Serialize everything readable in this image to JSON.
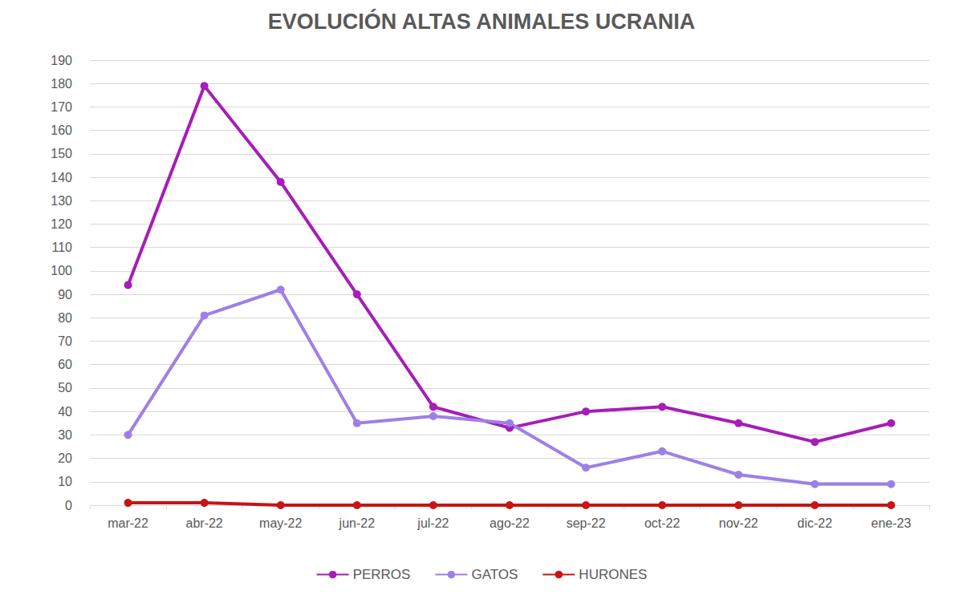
{
  "chart_data": {
    "type": "line",
    "title": "EVOLUCIÓN ALTAS ANIMALES UCRANIA",
    "categories": [
      "mar-22",
      "abr-22",
      "may-22",
      "jun-22",
      "jul-22",
      "ago-22",
      "sep-22",
      "oct-22",
      "nov-22",
      "dic-22",
      "ene-23"
    ],
    "series": [
      {
        "name": "PERROS",
        "color": "#a61db8",
        "values": [
          94,
          179,
          138,
          90,
          42,
          33,
          40,
          42,
          35,
          27,
          35
        ]
      },
      {
        "name": "GATOS",
        "color": "#9d80e6",
        "values": [
          30,
          81,
          92,
          35,
          38,
          35,
          16,
          23,
          13,
          9,
          9
        ]
      },
      {
        "name": "HURONES",
        "color": "#c81414",
        "values": [
          1,
          1,
          0,
          0,
          0,
          0,
          0,
          0,
          0,
          0,
          0
        ]
      }
    ],
    "ylim": [
      0,
      190
    ],
    "yticks": [
      0,
      10,
      20,
      30,
      40,
      50,
      60,
      70,
      80,
      90,
      100,
      110,
      120,
      130,
      140,
      150,
      160,
      170,
      180,
      190
    ],
    "grid": true,
    "legend": "bottom",
    "marker": "circle"
  }
}
